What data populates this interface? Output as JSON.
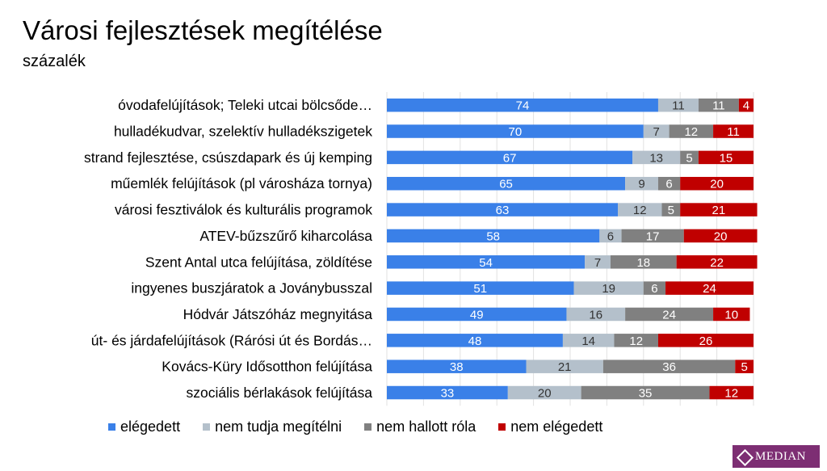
{
  "page": {
    "title": "Városi fejlesztések megítélése",
    "subtitle": "százalék"
  },
  "logo": {
    "text": "MEDIAN"
  },
  "chart_data": {
    "type": "bar",
    "orientation": "horizontal",
    "stacked": true,
    "xlim": [
      0,
      100
    ],
    "grid": true,
    "legend_position": "bottom",
    "categories": [
      "óvodafelújítások; Teleki utcai bölcsőde…",
      "hulladékudvar, szelektív hulladékszigetek",
      "strand fejlesztése, csúszdapark és új kemping",
      "műemlék felújítások (pl városháza tornya)",
      "városi fesztiválok és kulturális programok",
      "ATEV-bűzszűrő kiharcolása",
      "Szent Antal utca felújítása, zöldítése",
      "ingyenes buszjáratok a Joványbusszal",
      "Hódvár Játszóház megnyitása",
      "út- és járdafelújítások (Rárósi út és Bordás…",
      "Kovács-Küry Idősotthon felújítása",
      "szociális bérlakások felújítása"
    ],
    "series": [
      {
        "name": "elégedett",
        "color": "#3a80e8",
        "label_color": "#ffffff",
        "values": [
          74,
          70,
          67,
          65,
          63,
          58,
          54,
          51,
          49,
          48,
          38,
          33
        ]
      },
      {
        "name": "nem tudja megítélni",
        "color": "#b4c0cb",
        "label_color": "#333333",
        "values": [
          11,
          7,
          13,
          9,
          12,
          6,
          7,
          19,
          16,
          14,
          21,
          20
        ]
      },
      {
        "name": "nem hallott róla",
        "color": "#808080",
        "label_color": "#ffffff",
        "values": [
          11,
          12,
          5,
          6,
          5,
          17,
          18,
          6,
          24,
          12,
          36,
          35
        ]
      },
      {
        "name": "nem elégedett",
        "color": "#c00000",
        "label_color": "#ffffff",
        "values": [
          4,
          11,
          15,
          20,
          21,
          20,
          22,
          24,
          10,
          26,
          5,
          12
        ]
      }
    ]
  }
}
